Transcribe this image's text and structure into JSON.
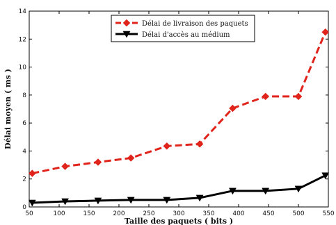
{
  "chart_data": {
    "type": "line",
    "x": [
      55,
      110,
      165,
      220,
      280,
      335,
      390,
      445,
      500,
      545
    ],
    "xlabel": "Taille des paquets ( bits )",
    "ylabel": "Délai moyen ( ms )",
    "xlim": [
      50,
      550
    ],
    "ylim": [
      0,
      14
    ],
    "xticks": [
      "50",
      "100",
      "150",
      "200",
      "250",
      "300",
      "350",
      "400",
      "450",
      "500",
      "550"
    ],
    "yticks": [
      "0",
      "2",
      "4",
      "6",
      "8",
      "10",
      "12",
      "14"
    ],
    "grid": false,
    "legend_position": "top-center",
    "series": [
      {
        "name": "Délai de livraison des paquets",
        "values": [
          2.4,
          2.9,
          3.2,
          3.5,
          4.35,
          4.5,
          7.05,
          7.9,
          7.9,
          12.5
        ],
        "color": "#e0241b",
        "style": "dashed",
        "marker": "diamond"
      },
      {
        "name": "Délai d'accès au médium",
        "values": [
          0.3,
          0.4,
          0.45,
          0.5,
          0.5,
          0.65,
          1.15,
          1.15,
          1.3,
          2.25
        ],
        "color": "#000000",
        "style": "solid",
        "marker": "triangle-down"
      }
    ]
  }
}
